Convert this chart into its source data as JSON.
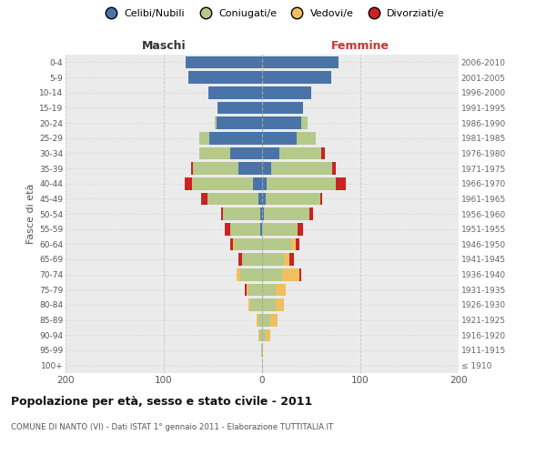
{
  "age_groups": [
    "100+",
    "95-99",
    "90-94",
    "85-89",
    "80-84",
    "75-79",
    "70-74",
    "65-69",
    "60-64",
    "55-59",
    "50-54",
    "45-49",
    "40-44",
    "35-39",
    "30-34",
    "25-29",
    "20-24",
    "15-19",
    "10-14",
    "5-9",
    "0-4"
  ],
  "birth_years": [
    "≤ 1910",
    "1911-1915",
    "1916-1920",
    "1921-1925",
    "1926-1930",
    "1931-1935",
    "1936-1940",
    "1941-1945",
    "1946-1950",
    "1951-1955",
    "1956-1960",
    "1961-1965",
    "1966-1970",
    "1971-1975",
    "1976-1980",
    "1981-1985",
    "1986-1990",
    "1991-1995",
    "1996-2000",
    "2001-2005",
    "2006-2010"
  ],
  "males": {
    "celibe": [
      0,
      0,
      0,
      0,
      0,
      0,
      0,
      0,
      0,
      2,
      2,
      4,
      9,
      24,
      32,
      54,
      46,
      45,
      55,
      75,
      78
    ],
    "coniugato": [
      0,
      1,
      3,
      4,
      12,
      14,
      22,
      20,
      28,
      30,
      38,
      52,
      62,
      46,
      32,
      10,
      2,
      0,
      0,
      0,
      0
    ],
    "vedovo": [
      0,
      0,
      1,
      2,
      2,
      2,
      4,
      0,
      2,
      0,
      0,
      0,
      0,
      0,
      0,
      0,
      0,
      0,
      0,
      0,
      0
    ],
    "divorziato": [
      0,
      0,
      0,
      0,
      0,
      2,
      0,
      4,
      2,
      6,
      2,
      6,
      8,
      2,
      0,
      0,
      0,
      0,
      0,
      0,
      0
    ]
  },
  "females": {
    "nubile": [
      0,
      0,
      0,
      0,
      0,
      0,
      0,
      0,
      0,
      0,
      2,
      4,
      5,
      9,
      18,
      35,
      40,
      42,
      50,
      70,
      78
    ],
    "coniugata": [
      0,
      0,
      4,
      8,
      14,
      14,
      20,
      22,
      30,
      36,
      46,
      55,
      70,
      62,
      42,
      20,
      6,
      0,
      0,
      0,
      0
    ],
    "vedova": [
      0,
      1,
      4,
      8,
      8,
      10,
      18,
      6,
      4,
      0,
      0,
      0,
      0,
      0,
      0,
      0,
      0,
      0,
      0,
      0,
      0
    ],
    "divorziata": [
      0,
      0,
      0,
      0,
      0,
      0,
      2,
      4,
      4,
      6,
      4,
      2,
      10,
      4,
      4,
      0,
      0,
      0,
      0,
      0,
      0
    ]
  },
  "colors": {
    "celibe": "#4a74a8",
    "coniugato": "#b5c98a",
    "vedovo": "#f0c060",
    "divorziato": "#cc2222"
  },
  "xlim": 200,
  "title": "Popolazione per età, sesso e stato civile - 2011",
  "subtitle": "COMUNE DI NANTO (VI) - Dati ISTAT 1° gennaio 2011 - Elaborazione TUTTITALIA.IT",
  "xlabel_left": "Maschi",
  "xlabel_right": "Femmine",
  "ylabel_left": "Fasce di età",
  "bg_color": "#ffffff",
  "grid_color": "#cccccc",
  "legend_labels": [
    "Celibi/Nubili",
    "Coniugati/e",
    "Vedovi/e",
    "Divorziati/e"
  ]
}
